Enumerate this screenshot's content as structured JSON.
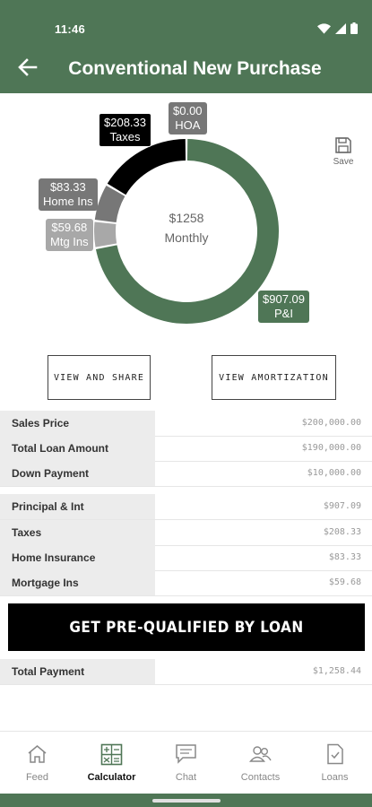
{
  "status": {
    "time": "11:46"
  },
  "header": {
    "title": "Conventional New Purchase"
  },
  "colors": {
    "brand": "#4f7656",
    "taxes": "#000000",
    "home_ins": "#777777",
    "mtg_ins": "#a8a8a8"
  },
  "chart_data": {
    "type": "pie",
    "title": "",
    "center_value": "$1258",
    "center_label": "Monthly",
    "slices": [
      {
        "name": "P&I",
        "value": 907.09,
        "label_value": "$907.09",
        "color": "#4f7656"
      },
      {
        "name": "Mtg Ins",
        "value": 59.68,
        "label_value": "$59.68",
        "color": "#a8a8a8"
      },
      {
        "name": "Home Ins",
        "value": 83.33,
        "label_value": "$83.33",
        "color": "#777777"
      },
      {
        "name": "Taxes",
        "value": 208.33,
        "label_value": "$208.33",
        "color": "#000000"
      },
      {
        "name": "HOA",
        "value": 0.0,
        "label_value": "$0.00",
        "color": "#777777"
      }
    ]
  },
  "toolbar": {
    "save_label": "Save"
  },
  "actions": {
    "view_share": "VIEW AND SHARE",
    "view_amortization": "VIEW AMORTIZATION",
    "prequalify": "GET PRE-QUALIFIED BY LOAN"
  },
  "loan": [
    {
      "label": "Sales Price",
      "value": "$200,000.00"
    },
    {
      "label": "Total Loan Amount",
      "value": "$190,000.00"
    },
    {
      "label": "Down Payment",
      "value": "$10,000.00"
    }
  ],
  "payment": [
    {
      "label": "Principal & Int",
      "value": "$907.09"
    },
    {
      "label": "Taxes",
      "value": "$208.33"
    },
    {
      "label": "Home Insurance",
      "value": "$83.33"
    },
    {
      "label": "Mortgage Ins",
      "value": "$59.68"
    }
  ],
  "total": {
    "label": "Total Payment",
    "value": "$1,258.44"
  },
  "nav": [
    {
      "label": "Feed",
      "icon": "home-icon"
    },
    {
      "label": "Calculator",
      "icon": "calculator-icon",
      "active": true
    },
    {
      "label": "Chat",
      "icon": "chat-icon"
    },
    {
      "label": "Contacts",
      "icon": "contacts-icon"
    },
    {
      "label": "Loans",
      "icon": "loans-icon"
    }
  ]
}
